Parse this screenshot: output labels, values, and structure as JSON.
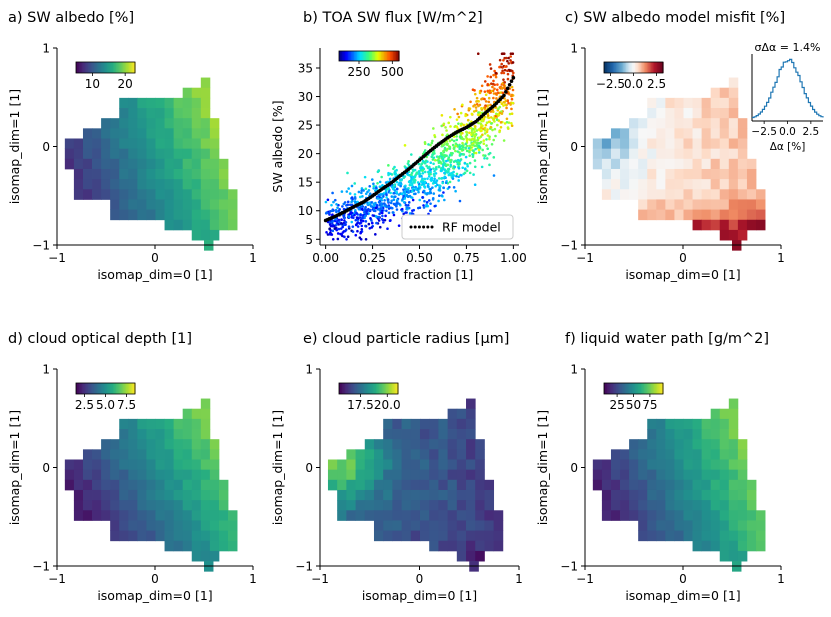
{
  "chart_data": [
    {
      "id": "a",
      "type": "heatmap",
      "title": "a) SW albedo [%]",
      "xlabel": "isomap_dim=0 [1]",
      "ylabel": "isomap_dim=1 [1]",
      "xlim": [
        -1,
        1
      ],
      "ylim": [
        -1,
        1
      ],
      "xticks": [
        "−1",
        "0",
        "1"
      ],
      "yticks": [
        "1",
        "0",
        "−1"
      ],
      "colormap": "viridis",
      "field": "albedo",
      "colorbar": {
        "ticks": [
          "10",
          "20"
        ],
        "tick_values": [
          10,
          20
        ],
        "range": [
          5,
          23
        ]
      }
    },
    {
      "id": "b",
      "type": "scatter",
      "title": "b) TOA SW flux [W/m^2]",
      "xlabel": "cloud fraction [1]",
      "ylabel": "SW albedo [%]",
      "xlim": [
        -0.03,
        1.03
      ],
      "ylim": [
        4,
        38.5
      ],
      "xticks": [
        "0.00",
        "0.25",
        "0.50",
        "0.75",
        "1.00"
      ],
      "xtick_values": [
        0,
        0.25,
        0.5,
        0.75,
        1.0
      ],
      "yticks": [
        "5",
        "10",
        "15",
        "20",
        "25",
        "30",
        "35"
      ],
      "ytick_values": [
        5,
        10,
        15,
        20,
        25,
        30,
        35
      ],
      "colormap": "jet",
      "colorbar": {
        "ticks": [
          "250",
          "500"
        ],
        "tick_values": [
          250,
          500
        ],
        "range": [
          100,
          550
        ]
      },
      "legend": {
        "label": "RF model",
        "location": "lower-right"
      },
      "rf_model": {
        "x": [
          0,
          0.05,
          0.1,
          0.15,
          0.2,
          0.25,
          0.3,
          0.35,
          0.4,
          0.45,
          0.5,
          0.55,
          0.6,
          0.65,
          0.7,
          0.75,
          0.8,
          0.85,
          0.9,
          0.95,
          1.0
        ],
        "y": [
          8.3,
          9.0,
          9.8,
          10.7,
          11.5,
          12.6,
          13.8,
          14.9,
          16.2,
          17.5,
          18.9,
          20.3,
          21.6,
          22.8,
          23.8,
          24.6,
          25.6,
          27.1,
          28.5,
          30.2,
          33.3
        ]
      }
    },
    {
      "id": "c",
      "type": "heatmap",
      "title": "c) SW albedo model misfit [%]",
      "xlabel": "isomap_dim=0 [1]",
      "ylabel": "isomap_dim=1 [1]",
      "xlim": [
        -1,
        1
      ],
      "ylim": [
        -1,
        1
      ],
      "xticks": [
        "−1",
        "0",
        "1"
      ],
      "yticks": [
        "1",
        "0",
        "−1"
      ],
      "colormap": "RdBu_r",
      "field": "misfit",
      "colorbar": {
        "ticks": [
          "−2.5",
          "0.0",
          "2.5"
        ],
        "tick_values": [
          -2.5,
          0,
          2.5
        ],
        "range": [
          -3.2,
          3.2
        ]
      },
      "inset": {
        "type": "histogram",
        "title": "σΔα = 1.4%",
        "xlabel": "Δα [%]",
        "xticks": [
          "−2.5",
          "0.0",
          "2.5"
        ],
        "xtick_values": [
          -2.5,
          0,
          2.5
        ],
        "xlim": [
          -3.8,
          3.8
        ],
        "sigma": 1.4
      }
    },
    {
      "id": "d",
      "type": "heatmap",
      "title": "d) cloud optical depth [1]",
      "xlabel": "isomap_dim=0 [1]",
      "ylabel": "isomap_dim=1 [1]",
      "xlim": [
        -1,
        1
      ],
      "ylim": [
        -1,
        1
      ],
      "xticks": [
        "−1",
        "0",
        "1"
      ],
      "yticks": [
        "1",
        "0",
        "−1"
      ],
      "colormap": "viridis",
      "field": "cod",
      "colorbar": {
        "ticks": [
          "2.5",
          "5.0",
          "7.5"
        ],
        "tick_values": [
          2.5,
          5.0,
          7.5
        ],
        "range": [
          1.5,
          8.5
        ]
      }
    },
    {
      "id": "e",
      "type": "heatmap",
      "title": "e) cloud particle radius [μm]",
      "xlabel": "isomap_dim=0 [1]",
      "ylabel": "isomap_dim=1 [1]",
      "xlim": [
        -1,
        1
      ],
      "ylim": [
        -1,
        1
      ],
      "xticks": [
        "−1",
        "0",
        "1"
      ],
      "yticks": [
        "1",
        "0",
        "−1"
      ],
      "colormap": "viridis",
      "field": "radius",
      "colorbar": {
        "ticks": [
          "17.5",
          "20.0"
        ],
        "tick_values": [
          17.5,
          20.0
        ],
        "range": [
          15.5,
          21.0
        ]
      }
    },
    {
      "id": "f",
      "type": "heatmap",
      "title": "f) liquid water path [g/m^2]",
      "xlabel": "isomap_dim=0 [1]",
      "ylabel": "isomap_dim=1 [1]",
      "xlim": [
        -1,
        1
      ],
      "ylim": [
        -1,
        1
      ],
      "xticks": [
        "−1",
        "0",
        "1"
      ],
      "yticks": [
        "1",
        "0",
        "−1"
      ],
      "colormap": "viridis",
      "field": "lwp",
      "colorbar": {
        "ticks": [
          "25",
          "50",
          "75"
        ],
        "tick_values": [
          25,
          50,
          75
        ],
        "range": [
          5,
          95
        ]
      }
    }
  ]
}
